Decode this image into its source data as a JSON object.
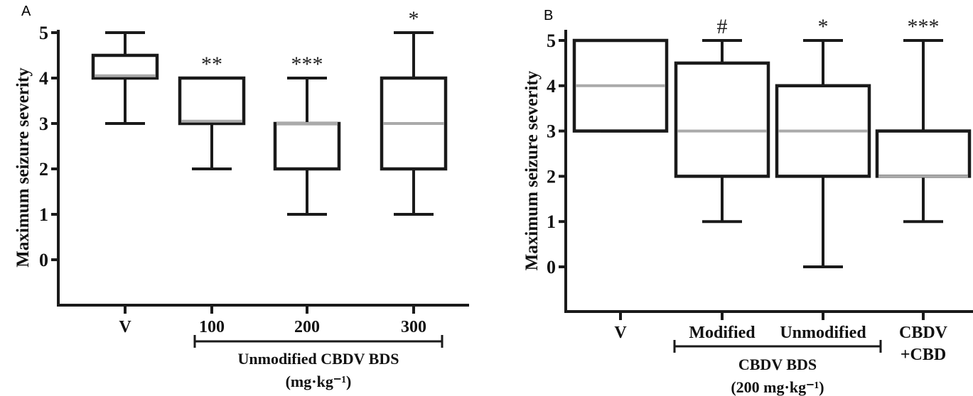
{
  "chart_data": [
    {
      "type": "boxplot",
      "panel": "A",
      "ylabel": "Maximum seizure severity",
      "yticks": [
        "0",
        "1",
        "2",
        "3",
        "4",
        "5"
      ],
      "ylim": [
        -1,
        5
      ],
      "categories": [
        "V",
        "100",
        "200",
        "300"
      ],
      "group_label": [
        "Unmodified CBDV BDS",
        "(mg·kg⁻¹)"
      ],
      "boxes": [
        {
          "min": 3,
          "q1": 4,
          "median": 4.05,
          "q3": 4.5,
          "max": 5,
          "sig": ""
        },
        {
          "min": 2,
          "q1": 3,
          "median": 3.05,
          "q3": 4,
          "max": 4,
          "sig": "**"
        },
        {
          "min": 1,
          "q1": 2,
          "median": 3,
          "q3": 3,
          "max": 4,
          "sig": "***"
        },
        {
          "min": 1,
          "q1": 2,
          "median": 3,
          "q3": 4,
          "max": 5,
          "sig": "*"
        }
      ]
    },
    {
      "type": "boxplot",
      "panel": "B",
      "ylabel": "Maximum seizure severity",
      "yticks": [
        "0",
        "1",
        "2",
        "3",
        "4",
        "5"
      ],
      "ylim": [
        -1,
        5
      ],
      "categories": [
        "V",
        "Modified",
        "Unmodified",
        "CBDV"
      ],
      "category_sublabel": "+CBD",
      "group_label": [
        "CBDV BDS",
        "(200 mg·kg⁻¹)"
      ],
      "boxes": [
        {
          "min": 3,
          "q1": 3,
          "median": 4,
          "q3": 5,
          "max": 5,
          "sig": ""
        },
        {
          "min": 1,
          "q1": 2,
          "median": 3,
          "q3": 4.5,
          "max": 5,
          "sig": "#"
        },
        {
          "min": 0,
          "q1": 2,
          "median": 3,
          "q3": 4,
          "max": 5,
          "sig": "*"
        },
        {
          "min": 1,
          "q1": 2,
          "median": 2,
          "q3": 3,
          "max": 5,
          "sig": "***"
        }
      ]
    }
  ]
}
